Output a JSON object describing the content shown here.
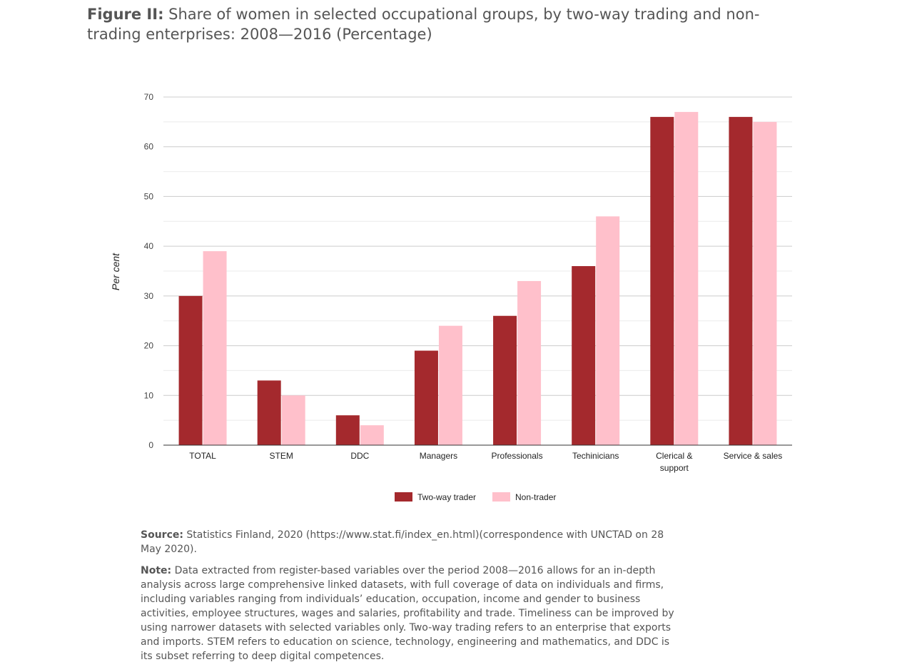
{
  "figure": {
    "label": "Figure II:",
    "title": "Share of women in selected occupational groups, by two-way trading and non-trading enterprises: 2008—2016 (Percentage)"
  },
  "chart_data": {
    "type": "bar",
    "categories": [
      "TOTAL",
      "STEM",
      "DDC",
      "Managers",
      "Professionals",
      "Techinicians",
      "Clerical & support",
      "Service & sales"
    ],
    "category_lines": [
      [
        "TOTAL"
      ],
      [
        "STEM"
      ],
      [
        "DDC"
      ],
      [
        "Managers"
      ],
      [
        "Professionals"
      ],
      [
        "Techinicians"
      ],
      [
        "Clerical &",
        "support"
      ],
      [
        "Service & sales"
      ]
    ],
    "series": [
      {
        "name": "Two-way trader",
        "color": "#a4292d",
        "values": [
          30,
          13,
          6,
          19,
          26,
          36,
          66,
          66
        ]
      },
      {
        "name": "Non-trader",
        "color": "#ffc0cb",
        "values": [
          39,
          10,
          4,
          24,
          33,
          46,
          67,
          65
        ]
      }
    ],
    "ylabel": "Per cent",
    "xlabel": "",
    "ylim": [
      0,
      70
    ],
    "yticks": [
      0,
      10,
      20,
      30,
      40,
      50,
      60,
      70
    ],
    "grid": true,
    "legend_position": "bottom"
  },
  "source": {
    "label": "Source:",
    "text": "Statistics Finland, 2020 (https://www.stat.fi/index_en.html)(correspondence with UNCTAD on 28 May 2020)."
  },
  "note": {
    "label": "Note:",
    "text": "Data extracted from register-based variables over the period 2008—2016 allows for an in-depth analysis across large comprehensive linked datasets, with full coverage of data on individuals and firms, including variables ranging from individuals’ education, occupation, income and gender to business activities, employee structures, wages and salaries, profitability and trade. Timeliness can be improved by using narrower datasets with selected variables only. Two-way trading refers to an enterprise that exports and imports. STEM refers to education on science, technology, engineering and mathematics, and DDC is its subset referring to deep digital competences."
  }
}
